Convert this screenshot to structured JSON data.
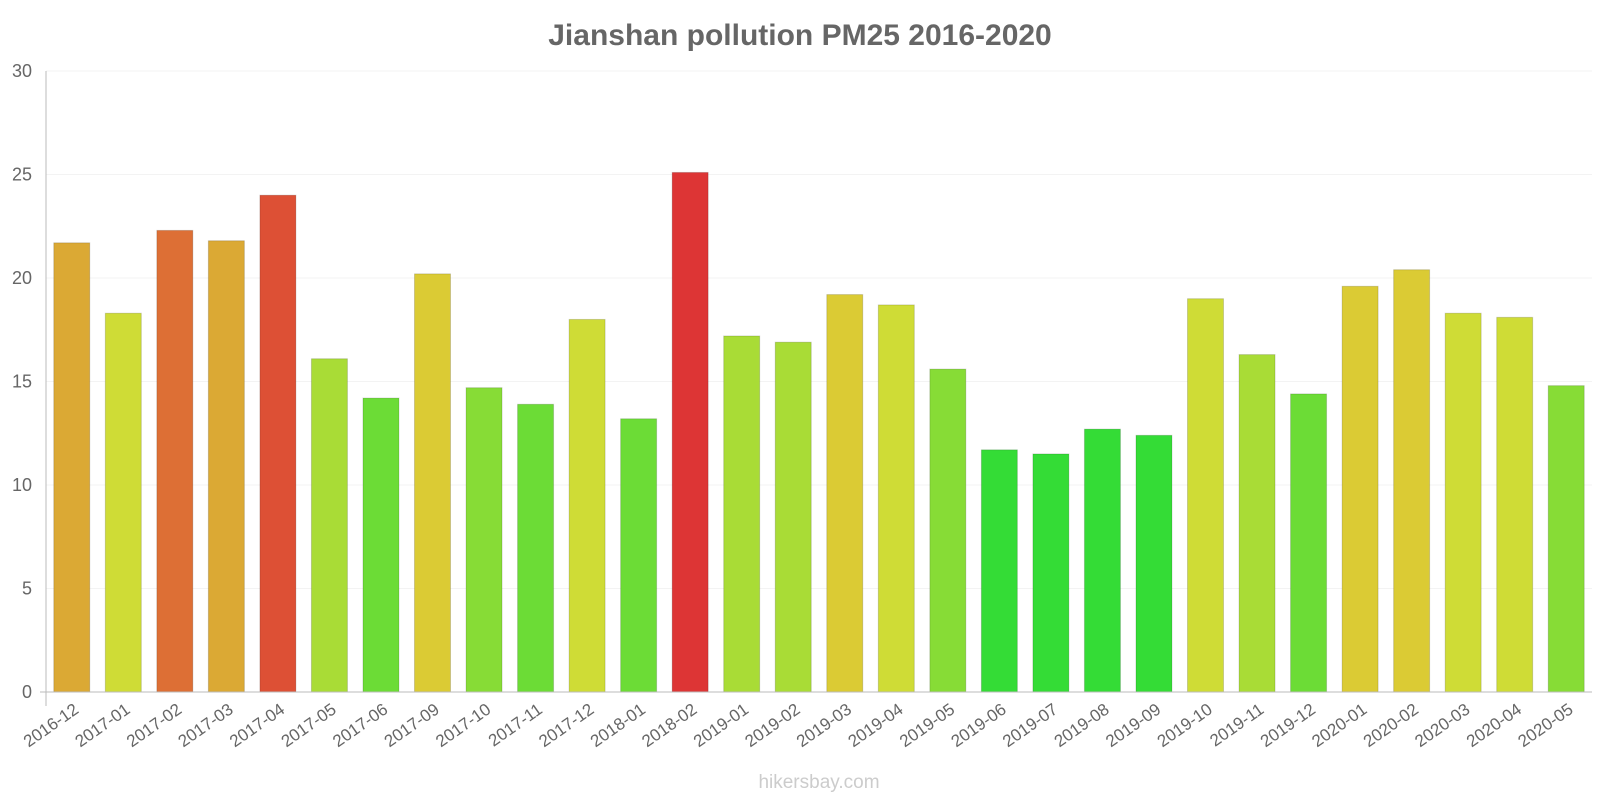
{
  "chart_data": {
    "type": "bar",
    "title": "Jianshan pollution PM25 2016-2020",
    "xlabel": "",
    "ylabel": "",
    "ylim": [
      0,
      30
    ],
    "yticks": [
      "0",
      "5",
      "10",
      "15",
      "20",
      "25",
      "30"
    ],
    "categories": [
      "2016-12",
      "2017-01",
      "2017-02",
      "2017-03",
      "2017-04",
      "2017-05",
      "2017-06",
      "2017-09",
      "2017-10",
      "2017-11",
      "2017-12",
      "2018-01",
      "2018-02",
      "2019-01",
      "2019-02",
      "2019-03",
      "2019-04",
      "2019-05",
      "2019-06",
      "2019-07",
      "2019-08",
      "2019-09",
      "2019-10",
      "2019-11",
      "2019-12",
      "2020-01",
      "2020-02",
      "2020-03",
      "2020-04",
      "2020-05"
    ],
    "values": [
      21.7,
      18.3,
      22.3,
      21.8,
      24.0,
      16.1,
      14.2,
      20.2,
      14.7,
      13.9,
      18.0,
      13.2,
      25.1,
      17.2,
      16.9,
      19.2,
      18.7,
      15.6,
      11.7,
      11.5,
      12.7,
      12.4,
      19.0,
      16.3,
      14.4,
      19.6,
      20.4,
      18.3,
      18.1,
      14.8
    ],
    "colors": [
      "#dba934",
      "#cfdc36",
      "#dd6f35",
      "#dba934",
      "#dd5035",
      "#a9dc36",
      "#6cdc36",
      "#dbcb34",
      "#87dc36",
      "#6cdc36",
      "#cfdc36",
      "#6cdc36",
      "#dd3535",
      "#a9dc36",
      "#a9dc36",
      "#dbcb34",
      "#cfdc36",
      "#87dc36",
      "#34dc36",
      "#34dc36",
      "#34dc36",
      "#34dc36",
      "#cfdc36",
      "#a9dc36",
      "#6cdc36",
      "#dbcb34",
      "#dbcb34",
      "#cfdc36",
      "#cfdc36",
      "#87dc36"
    ],
    "legend": "none",
    "grid": true
  },
  "watermark": "hikersbay.com"
}
